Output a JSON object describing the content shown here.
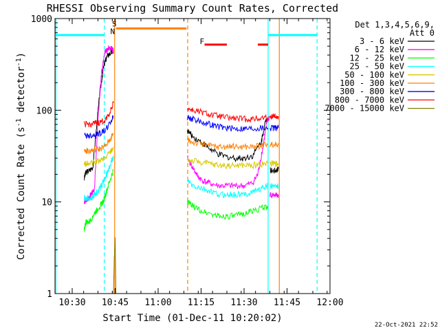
{
  "chart_data": {
    "type": "line",
    "title": "RHESSI Observing Summary Count Rates, Corrected",
    "xlabel": "Start Time (01-Dec-11 10:20:02)",
    "ylabel": "Corrected Count Rate (s⁻¹ detector⁻¹)",
    "ylabel_parts": {
      "base": "Corrected Count Rate (s",
      "sup1": "-1",
      "mid": " detector",
      "sup2": "-1",
      "end": ")"
    },
    "yscale": "log",
    "ylim": [
      1,
      1000
    ],
    "xlim_minutes": [
      10.4,
      12.0
    ],
    "xticks": [
      {
        "label": "10:30",
        "t": 10.5
      },
      {
        "label": "10:45",
        "t": 10.75
      },
      {
        "label": "11:00",
        "t": 11.0
      },
      {
        "label": "11:15",
        "t": 11.25
      },
      {
        "label": "11:30",
        "t": 11.5
      },
      {
        "label": "11:45",
        "t": 11.75
      },
      {
        "label": "12:00",
        "t": 12.0
      }
    ],
    "yticks": [
      {
        "label": "1",
        "v": 1
      },
      {
        "label": "10",
        "v": 10
      },
      {
        "label": "100",
        "v": 100
      },
      {
        "label": "1000",
        "v": 1000
      }
    ],
    "legend_header": [
      "Det 1,3,4,5,6,9,",
      "Att 0"
    ],
    "legend_placement": "right",
    "series": [
      {
        "name": "3 - 6 keV",
        "color": "#000000",
        "segments": [
          [
            [
              10.57,
              18
            ],
            [
              10.58,
              21
            ],
            [
              10.6,
              22
            ],
            [
              10.62,
              24
            ],
            [
              10.64,
              60
            ],
            [
              10.66,
              150
            ],
            [
              10.68,
              280
            ],
            [
              10.7,
              380
            ],
            [
              10.72,
              420
            ],
            [
              10.74,
              440
            ]
          ],
          [
            [
              11.17,
              60
            ],
            [
              11.2,
              52
            ],
            [
              11.25,
              45
            ],
            [
              11.3,
              38
            ],
            [
              11.35,
              33
            ],
            [
              11.4,
              31
            ],
            [
              11.45,
              30
            ],
            [
              11.5,
              30
            ],
            [
              11.55,
              32
            ],
            [
              11.6,
              45
            ],
            [
              11.62,
              70
            ],
            [
              11.64,
              85
            ]
          ],
          [
            [
              11.65,
              22
            ],
            [
              11.68,
              22
            ],
            [
              11.7,
              23
            ]
          ]
        ]
      },
      {
        "name": "6 - 12 keV",
        "color": "#ff00ff",
        "segments": [
          [
            [
              10.57,
              10
            ],
            [
              10.59,
              11
            ],
            [
              10.61,
              12
            ],
            [
              10.63,
              14
            ],
            [
              10.65,
              80
            ],
            [
              10.67,
              250
            ],
            [
              10.69,
              420
            ],
            [
              10.71,
              480
            ],
            [
              10.73,
              470
            ],
            [
              10.74,
              450
            ]
          ],
          [
            [
              11.17,
              30
            ],
            [
              11.2,
              24
            ],
            [
              11.23,
              19
            ],
            [
              11.26,
              17
            ],
            [
              11.3,
              16
            ],
            [
              11.35,
              15
            ],
            [
              11.4,
              15
            ],
            [
              11.45,
              15
            ],
            [
              11.5,
              15
            ],
            [
              11.55,
              16
            ],
            [
              11.58,
              20
            ],
            [
              11.61,
              40
            ],
            [
              11.63,
              70
            ],
            [
              11.65,
              85
            ]
          ],
          [
            [
              11.65,
              12
            ],
            [
              11.68,
              12
            ],
            [
              11.7,
              12
            ]
          ]
        ]
      },
      {
        "name": "12 - 25 keV",
        "color": "#00ff00",
        "segments": [
          [
            [
              10.57,
              5
            ],
            [
              10.58,
              6
            ],
            [
              10.6,
              6
            ],
            [
              10.62,
              7
            ],
            [
              10.64,
              8
            ],
            [
              10.66,
              9
            ],
            [
              10.68,
              10
            ],
            [
              10.7,
              13
            ],
            [
              10.72,
              17
            ],
            [
              10.74,
              22
            ]
          ],
          [
            [
              11.17,
              10
            ],
            [
              11.2,
              9
            ],
            [
              11.25,
              8
            ],
            [
              11.3,
              7.5
            ],
            [
              11.35,
              7
            ],
            [
              11.4,
              7
            ],
            [
              11.45,
              7
            ],
            [
              11.5,
              7.5
            ],
            [
              11.55,
              8
            ],
            [
              11.6,
              8.5
            ],
            [
              11.64,
              9
            ]
          ]
        ]
      },
      {
        "name": "25 - 50 keV",
        "color": "#00ffff",
        "segments": [
          [
            [
              10.57,
              11
            ],
            [
              10.59,
              11
            ],
            [
              10.61,
              11
            ],
            [
              10.63,
              12
            ],
            [
              10.65,
              13
            ],
            [
              10.67,
              15
            ],
            [
              10.69,
              18
            ],
            [
              10.71,
              22
            ],
            [
              10.73,
              28
            ],
            [
              10.74,
              32
            ]
          ],
          [
            [
              11.17,
              17
            ],
            [
              11.2,
              15
            ],
            [
              11.25,
              14
            ],
            [
              11.3,
              13
            ],
            [
              11.35,
              12
            ],
            [
              11.4,
              12
            ],
            [
              11.45,
              12
            ],
            [
              11.5,
              12
            ],
            [
              11.55,
              13
            ],
            [
              11.6,
              14
            ],
            [
              11.64,
              15
            ]
          ],
          [
            [
              11.65,
              15
            ],
            [
              11.68,
              15
            ],
            [
              11.7,
              15
            ]
          ]
        ]
      },
      {
        "name": "50 - 100 keV",
        "color": "#d7c800",
        "segments": [
          [
            [
              10.57,
              26
            ],
            [
              10.6,
              26
            ],
            [
              10.63,
              27
            ],
            [
              10.66,
              28
            ],
            [
              10.69,
              30
            ],
            [
              10.72,
              35
            ],
            [
              10.74,
              40
            ]
          ],
          [
            [
              11.17,
              29
            ],
            [
              11.2,
              28
            ],
            [
              11.25,
              27
            ],
            [
              11.3,
              26
            ],
            [
              11.35,
              25
            ],
            [
              11.4,
              25
            ],
            [
              11.45,
              25
            ],
            [
              11.5,
              25
            ],
            [
              11.55,
              25
            ],
            [
              11.6,
              26
            ],
            [
              11.64,
              26
            ]
          ],
          [
            [
              11.65,
              26
            ],
            [
              11.68,
              26
            ],
            [
              11.7,
              26
            ]
          ]
        ]
      },
      {
        "name": "100 - 300 keV",
        "color": "#ff8000",
        "segments": [
          [
            [
              10.57,
              36
            ],
            [
              10.6,
              36
            ],
            [
              10.63,
              37
            ],
            [
              10.66,
              38
            ],
            [
              10.69,
              40
            ],
            [
              10.72,
              48
            ],
            [
              10.74,
              55
            ]
          ],
          [
            [
              11.17,
              47
            ],
            [
              11.2,
              45
            ],
            [
              11.25,
              43
            ],
            [
              11.3,
              41
            ],
            [
              11.35,
              40
            ],
            [
              11.4,
              40
            ],
            [
              11.45,
              40
            ],
            [
              11.5,
              40
            ],
            [
              11.55,
              40
            ],
            [
              11.6,
              41
            ],
            [
              11.64,
              42
            ]
          ],
          [
            [
              11.65,
              42
            ],
            [
              11.68,
              42
            ],
            [
              11.7,
              42
            ]
          ]
        ]
      },
      {
        "name": "300 - 800 keV",
        "color": "#0000ff",
        "segments": [
          [
            [
              10.57,
              53
            ],
            [
              10.6,
              53
            ],
            [
              10.63,
              54
            ],
            [
              10.66,
              56
            ],
            [
              10.69,
              60
            ],
            [
              10.72,
              72
            ],
            [
              10.74,
              85
            ]
          ],
          [
            [
              11.17,
              84
            ],
            [
              11.2,
              80
            ],
            [
              11.25,
              75
            ],
            [
              11.3,
              70
            ],
            [
              11.35,
              66
            ],
            [
              11.4,
              64
            ],
            [
              11.45,
              63
            ],
            [
              11.5,
              63
            ],
            [
              11.55,
              63
            ],
            [
              11.6,
              64
            ],
            [
              11.64,
              64
            ]
          ],
          [
            [
              11.65,
              64
            ],
            [
              11.68,
              64
            ],
            [
              11.7,
              64
            ]
          ]
        ]
      },
      {
        "name": "800 - 7000 keV",
        "color": "#ff0000",
        "segments": [
          [
            [
              10.57,
              70
            ],
            [
              10.6,
              70
            ],
            [
              10.63,
              71
            ],
            [
              10.66,
              73
            ],
            [
              10.69,
              78
            ],
            [
              10.72,
              95
            ],
            [
              10.74,
              120
            ]
          ],
          [
            [
              11.17,
              105
            ],
            [
              11.2,
              100
            ],
            [
              11.25,
              95
            ],
            [
              11.3,
              90
            ],
            [
              11.35,
              86
            ],
            [
              11.4,
              83
            ],
            [
              11.45,
              81
            ],
            [
              11.5,
              80
            ],
            [
              11.55,
              80
            ],
            [
              11.6,
              82
            ],
            [
              11.64,
              85
            ]
          ],
          [
            [
              11.65,
              85
            ],
            [
              11.68,
              86
            ],
            [
              11.7,
              86
            ]
          ]
        ]
      },
      {
        "name": "7000 - 15000 keV",
        "color": "#808000",
        "segments": [
          [
            [
              10.74,
              1
            ],
            [
              10.745,
              2.5
            ],
            [
              10.75,
              4
            ],
            [
              10.755,
              1
            ]
          ]
        ]
      }
    ],
    "annotations": [
      {
        "label": "S",
        "color": "#ff8000",
        "t": 10.745,
        "v": 820
      },
      {
        "label": "N",
        "color": "#00ffff",
        "t": 10.735,
        "v": 680
      },
      {
        "label": "F",
        "color": "#ff0000",
        "t": 11.255,
        "v": 530
      }
    ],
    "vertical_lines": [
      {
        "t": 10.405,
        "color": "#00ffff",
        "style": "solid"
      },
      {
        "t": 10.687,
        "color": "#00ffff",
        "style": "dashed"
      },
      {
        "t": 10.747,
        "color": "#ff8000",
        "style": "solid"
      },
      {
        "t": 11.172,
        "color": "#ff8000",
        "style": "dashed"
      },
      {
        "t": 11.64,
        "color": "#00ffff",
        "style": "solid"
      },
      {
        "t": 11.705,
        "color": "#ff8000",
        "style": "solid"
      },
      {
        "t": 11.925,
        "color": "#00ffff",
        "style": "dashed"
      }
    ],
    "horizontal_bars": [
      {
        "t0": 10.405,
        "t1": 10.687,
        "v": 660,
        "color": "#00ffff"
      },
      {
        "t0": 10.755,
        "t1": 11.165,
        "v": 780,
        "color": "#ff8000"
      },
      {
        "t0": 11.27,
        "t1": 11.4,
        "v": 520,
        "color": "#ff0000"
      },
      {
        "t0": 11.58,
        "t1": 11.64,
        "v": 520,
        "color": "#ff0000"
      },
      {
        "t0": 11.64,
        "t1": 11.925,
        "v": 660,
        "color": "#00ffff"
      }
    ]
  },
  "footer": {
    "timestamp": "22-Oct-2021 22:52"
  }
}
